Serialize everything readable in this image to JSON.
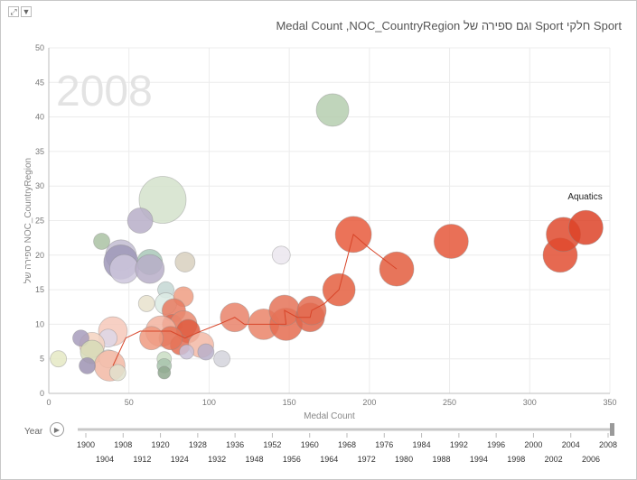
{
  "header": {
    "title": "Medal Count ,NOC_CountryRegion וגם ספירה של Sport חלקי Sport",
    "icons": [
      "expand-icon",
      "filter-icon"
    ]
  },
  "play_axis": {
    "label": "Year",
    "years_top": [
      "1900",
      "1908",
      "1920",
      "1928",
      "1936",
      "1952",
      "1960",
      "1968",
      "1976",
      "1984",
      "1992",
      "1996",
      "2000",
      "2004",
      "2008"
    ],
    "years_bottom": [
      "1904",
      "1912",
      "1924",
      "1932",
      "1948",
      "1956",
      "1964",
      "1972",
      "1980",
      "1988",
      "1994",
      "1998",
      "2002",
      "2006"
    ],
    "current": "2008"
  },
  "chart_data": {
    "type": "scatter",
    "title": "Medal Count ,NOC_CountryRegion וגם ספירה של Sport חלקי Sport",
    "xlabel": "Medal Count",
    "ylabel": "ספירה של NOC_CountryRegion",
    "xlim": [
      0,
      350
    ],
    "ylim": [
      0,
      50
    ],
    "xticks": [
      "0",
      "50",
      "100",
      "150",
      "200",
      "250",
      "300",
      "350"
    ],
    "yticks": [
      "0",
      "5",
      "10",
      "15",
      "20",
      "25",
      "30",
      "35",
      "40",
      "45",
      "50"
    ],
    "watermark_year": "2008",
    "grid": true,
    "bubble_size": "medal count",
    "annotation": "Aquatics",
    "points": [
      {
        "x": 177,
        "y": 41,
        "r": 18,
        "color": "#b5ceaf"
      },
      {
        "x": 71,
        "y": 28,
        "r": 26,
        "color": "#d3e2cb"
      },
      {
        "x": 57,
        "y": 25,
        "r": 14,
        "color": "#b7aec8"
      },
      {
        "x": 33,
        "y": 22,
        "r": 9,
        "color": "#aac2a3"
      },
      {
        "x": 45,
        "y": 20,
        "r": 17,
        "color": "#c2bcd1"
      },
      {
        "x": 45,
        "y": 19,
        "r": 19,
        "color": "#9f98b9"
      },
      {
        "x": 47,
        "y": 18,
        "r": 16,
        "color": "#ccc6dc"
      },
      {
        "x": 63,
        "y": 19,
        "r": 14,
        "color": "#a9c8b8"
      },
      {
        "x": 63,
        "y": 18,
        "r": 16,
        "color": "#b7aec8"
      },
      {
        "x": 85,
        "y": 19,
        "r": 11,
        "color": "#d8d0be"
      },
      {
        "x": 145,
        "y": 20,
        "r": 10,
        "color": "#ebe6ee"
      },
      {
        "x": 73,
        "y": 15,
        "r": 9,
        "color": "#c4d7d3"
      },
      {
        "x": 61,
        "y": 13,
        "r": 9,
        "color": "#e8e2cc"
      },
      {
        "x": 73,
        "y": 13,
        "r": 12,
        "color": "#dcebe4"
      },
      {
        "x": 84,
        "y": 14,
        "r": 11,
        "color": "#ef9d83"
      },
      {
        "x": 78,
        "y": 12,
        "r": 13,
        "color": "#e77a5f"
      },
      {
        "x": 77,
        "y": 10,
        "r": 11,
        "color": "#e36a50"
      },
      {
        "x": 84,
        "y": 10,
        "r": 15,
        "color": "#e98a70"
      },
      {
        "x": 70,
        "y": 9,
        "r": 17,
        "color": "#f2b3a0"
      },
      {
        "x": 87,
        "y": 9,
        "r": 13,
        "color": "#df5a3e"
      },
      {
        "x": 82,
        "y": 7,
        "r": 11,
        "color": "#e46c52"
      },
      {
        "x": 76,
        "y": 8,
        "r": 13,
        "color": "#e57458"
      },
      {
        "x": 64,
        "y": 8,
        "r": 13,
        "color": "#ee9a80"
      },
      {
        "x": 95,
        "y": 7,
        "r": 14,
        "color": "#f3b8a6"
      },
      {
        "x": 40,
        "y": 9,
        "r": 16,
        "color": "#f6c8ba"
      },
      {
        "x": 37,
        "y": 8,
        "r": 10,
        "color": "#ddd7e8"
      },
      {
        "x": 27,
        "y": 7,
        "r": 14,
        "color": "#f5d2c0"
      },
      {
        "x": 20,
        "y": 8,
        "r": 9,
        "color": "#a79cbc"
      },
      {
        "x": 27,
        "y": 6,
        "r": 13,
        "color": "#d6dbb7"
      },
      {
        "x": 37,
        "y": 5,
        "r": 10,
        "color": "#f3e8e0"
      },
      {
        "x": 38,
        "y": 4,
        "r": 17,
        "color": "#f2b8a4"
      },
      {
        "x": 43,
        "y": 3,
        "r": 9,
        "color": "#e0e0cc"
      },
      {
        "x": 24,
        "y": 4,
        "r": 9,
        "color": "#9e93b3"
      },
      {
        "x": 6,
        "y": 5,
        "r": 9,
        "color": "#e5e9c4"
      },
      {
        "x": 72,
        "y": 5,
        "r": 8,
        "color": "#c9ddc3"
      },
      {
        "x": 72,
        "y": 4,
        "r": 8,
        "color": "#a8c3ab"
      },
      {
        "x": 72,
        "y": 3,
        "r": 7,
        "color": "#8fa88e"
      },
      {
        "x": 86,
        "y": 6,
        "r": 8,
        "color": "#c9c1d8"
      },
      {
        "x": 98,
        "y": 6,
        "r": 9,
        "color": "#b9b0ca"
      },
      {
        "x": 108,
        "y": 5,
        "r": 9,
        "color": "#d4d4dc"
      },
      {
        "x": 116,
        "y": 11,
        "r": 16,
        "color": "#e9826a"
      },
      {
        "x": 134,
        "y": 10,
        "r": 17,
        "color": "#ea8468"
      },
      {
        "x": 148,
        "y": 10,
        "r": 18,
        "color": "#e56c50"
      },
      {
        "x": 147,
        "y": 12,
        "r": 17,
        "color": "#e57358"
      },
      {
        "x": 163,
        "y": 11,
        "r": 16,
        "color": "#e1654a"
      },
      {
        "x": 164,
        "y": 12,
        "r": 16,
        "color": "#e36c51"
      },
      {
        "x": 181,
        "y": 15,
        "r": 18,
        "color": "#e45f40"
      },
      {
        "x": 190,
        "y": 23,
        "r": 20,
        "color": "#e75a3c"
      },
      {
        "x": 217,
        "y": 18,
        "r": 19,
        "color": "#e35d3e"
      },
      {
        "x": 251,
        "y": 22,
        "r": 19,
        "color": "#e5573a"
      },
      {
        "x": 319,
        "y": 20,
        "r": 19,
        "color": "#e24f32"
      },
      {
        "x": 321,
        "y": 23,
        "r": 19,
        "color": "#df4a2e"
      },
      {
        "x": 335,
        "y": 24,
        "r": 19,
        "color": "#dd4328"
      }
    ],
    "trail": [
      [
        40,
        4
      ],
      [
        48,
        8
      ],
      [
        57,
        9
      ],
      [
        67,
        9
      ],
      [
        76,
        9
      ],
      [
        85,
        8
      ],
      [
        95,
        9
      ],
      [
        106,
        10
      ],
      [
        116,
        11
      ],
      [
        122,
        10
      ],
      [
        134,
        10
      ],
      [
        148,
        10
      ],
      [
        147,
        12
      ],
      [
        155,
        11
      ],
      [
        163,
        11
      ],
      [
        164,
        12
      ],
      [
        172,
        13
      ],
      [
        181,
        15
      ],
      [
        190,
        23
      ],
      [
        200,
        21
      ],
      [
        217,
        18
      ]
    ]
  }
}
